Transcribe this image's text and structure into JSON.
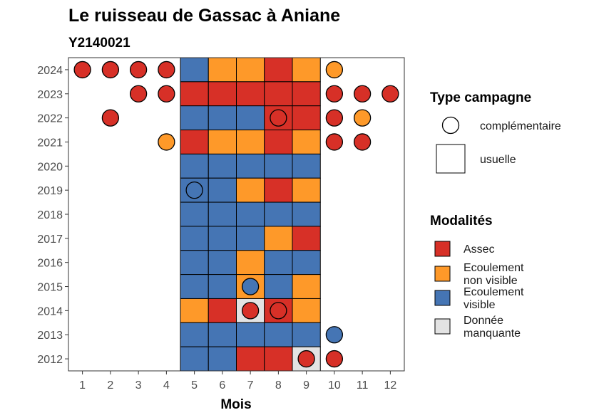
{
  "chart_data": {
    "type": "heatmap",
    "title": "Le ruisseau de Gassac à Aniane",
    "subtitle": "Y2140021",
    "xlabel": "Mois",
    "ylabel": "",
    "x_ticks": [
      "1",
      "2",
      "3",
      "4",
      "5",
      "6",
      "7",
      "8",
      "9",
      "10",
      "11",
      "12"
    ],
    "y_ticks": [
      "2024",
      "2023",
      "2022",
      "2021",
      "2020",
      "2019",
      "2018",
      "2017",
      "2016",
      "2015",
      "2014",
      "2013",
      "2012"
    ],
    "xlim": [
      0.5,
      12.5
    ],
    "ylim": [
      2011.5,
      2024.5
    ],
    "grid": false,
    "legend_position": "right",
    "colors": {
      "Assec": "#d73027",
      "Ecoulement non visible": "#fe9929",
      "Ecoulement visible": "#4575b4",
      "Donnée manquante": "#e3e3e3"
    },
    "legend_campaign": {
      "title": "Type campagne",
      "items": [
        {
          "label": "complémentaire",
          "shape": "circle"
        },
        {
          "label": "usuelle",
          "shape": "square"
        }
      ]
    },
    "legend_modalities": {
      "title": "Modalités",
      "items": [
        {
          "key": "Assec",
          "lines": [
            "Assec"
          ]
        },
        {
          "key": "Ecoulement non visible",
          "lines": [
            "Ecoulement",
            "non visible"
          ]
        },
        {
          "key": "Ecoulement visible",
          "lines": [
            "Ecoulement",
            "visible"
          ]
        },
        {
          "key": "Donnée manquante",
          "lines": [
            "Donnée",
            "manquante"
          ]
        }
      ]
    },
    "usuelle": [
      {
        "year": 2024,
        "month": 5,
        "value": "Ecoulement visible"
      },
      {
        "year": 2024,
        "month": 6,
        "value": "Ecoulement non visible"
      },
      {
        "year": 2024,
        "month": 7,
        "value": "Ecoulement non visible"
      },
      {
        "year": 2024,
        "month": 8,
        "value": "Assec"
      },
      {
        "year": 2024,
        "month": 9,
        "value": "Ecoulement non visible"
      },
      {
        "year": 2023,
        "month": 5,
        "value": "Assec"
      },
      {
        "year": 2023,
        "month": 6,
        "value": "Assec"
      },
      {
        "year": 2023,
        "month": 7,
        "value": "Assec"
      },
      {
        "year": 2023,
        "month": 8,
        "value": "Assec"
      },
      {
        "year": 2023,
        "month": 9,
        "value": "Assec"
      },
      {
        "year": 2022,
        "month": 5,
        "value": "Ecoulement visible"
      },
      {
        "year": 2022,
        "month": 6,
        "value": "Ecoulement visible"
      },
      {
        "year": 2022,
        "month": 7,
        "value": "Ecoulement visible"
      },
      {
        "year": 2022,
        "month": 8,
        "value": "Assec"
      },
      {
        "year": 2022,
        "month": 9,
        "value": "Assec"
      },
      {
        "year": 2021,
        "month": 5,
        "value": "Assec"
      },
      {
        "year": 2021,
        "month": 6,
        "value": "Ecoulement non visible"
      },
      {
        "year": 2021,
        "month": 7,
        "value": "Ecoulement non visible"
      },
      {
        "year": 2021,
        "month": 8,
        "value": "Assec"
      },
      {
        "year": 2021,
        "month": 9,
        "value": "Ecoulement non visible"
      },
      {
        "year": 2020,
        "month": 5,
        "value": "Ecoulement visible"
      },
      {
        "year": 2020,
        "month": 6,
        "value": "Ecoulement visible"
      },
      {
        "year": 2020,
        "month": 7,
        "value": "Ecoulement visible"
      },
      {
        "year": 2020,
        "month": 8,
        "value": "Ecoulement visible"
      },
      {
        "year": 2020,
        "month": 9,
        "value": "Ecoulement visible"
      },
      {
        "year": 2019,
        "month": 5,
        "value": "Ecoulement visible"
      },
      {
        "year": 2019,
        "month": 6,
        "value": "Ecoulement visible"
      },
      {
        "year": 2019,
        "month": 7,
        "value": "Ecoulement non visible"
      },
      {
        "year": 2019,
        "month": 8,
        "value": "Assec"
      },
      {
        "year": 2019,
        "month": 9,
        "value": "Ecoulement non visible"
      },
      {
        "year": 2018,
        "month": 5,
        "value": "Ecoulement visible"
      },
      {
        "year": 2018,
        "month": 6,
        "value": "Ecoulement visible"
      },
      {
        "year": 2018,
        "month": 7,
        "value": "Ecoulement visible"
      },
      {
        "year": 2018,
        "month": 8,
        "value": "Ecoulement visible"
      },
      {
        "year": 2018,
        "month": 9,
        "value": "Ecoulement visible"
      },
      {
        "year": 2017,
        "month": 5,
        "value": "Ecoulement visible"
      },
      {
        "year": 2017,
        "month": 6,
        "value": "Ecoulement visible"
      },
      {
        "year": 2017,
        "month": 7,
        "value": "Ecoulement visible"
      },
      {
        "year": 2017,
        "month": 8,
        "value": "Ecoulement non visible"
      },
      {
        "year": 2017,
        "month": 9,
        "value": "Assec"
      },
      {
        "year": 2016,
        "month": 5,
        "value": "Ecoulement visible"
      },
      {
        "year": 2016,
        "month": 6,
        "value": "Ecoulement visible"
      },
      {
        "year": 2016,
        "month": 7,
        "value": "Ecoulement non visible"
      },
      {
        "year": 2016,
        "month": 8,
        "value": "Ecoulement visible"
      },
      {
        "year": 2016,
        "month": 9,
        "value": "Ecoulement visible"
      },
      {
        "year": 2015,
        "month": 5,
        "value": "Ecoulement visible"
      },
      {
        "year": 2015,
        "month": 6,
        "value": "Ecoulement visible"
      },
      {
        "year": 2015,
        "month": 7,
        "value": "Ecoulement non visible"
      },
      {
        "year": 2015,
        "month": 8,
        "value": "Ecoulement visible"
      },
      {
        "year": 2015,
        "month": 9,
        "value": "Ecoulement non visible"
      },
      {
        "year": 2014,
        "month": 5,
        "value": "Ecoulement non visible"
      },
      {
        "year": 2014,
        "month": 6,
        "value": "Assec"
      },
      {
        "year": 2014,
        "month": 7,
        "value": "Donnée manquante"
      },
      {
        "year": 2014,
        "month": 8,
        "value": "Assec"
      },
      {
        "year": 2014,
        "month": 9,
        "value": "Ecoulement non visible"
      },
      {
        "year": 2013,
        "month": 5,
        "value": "Ecoulement visible"
      },
      {
        "year": 2013,
        "month": 6,
        "value": "Ecoulement visible"
      },
      {
        "year": 2013,
        "month": 7,
        "value": "Ecoulement visible"
      },
      {
        "year": 2013,
        "month": 8,
        "value": "Ecoulement visible"
      },
      {
        "year": 2013,
        "month": 9,
        "value": "Ecoulement visible"
      },
      {
        "year": 2012,
        "month": 5,
        "value": "Ecoulement visible"
      },
      {
        "year": 2012,
        "month": 6,
        "value": "Ecoulement visible"
      },
      {
        "year": 2012,
        "month": 7,
        "value": "Assec"
      },
      {
        "year": 2012,
        "month": 8,
        "value": "Assec"
      },
      {
        "year": 2012,
        "month": 9,
        "value": "Donnée manquante"
      }
    ],
    "complementaire": [
      {
        "year": 2024,
        "month": 1,
        "value": "Assec"
      },
      {
        "year": 2024,
        "month": 2,
        "value": "Assec"
      },
      {
        "year": 2024,
        "month": 3,
        "value": "Assec"
      },
      {
        "year": 2024,
        "month": 4,
        "value": "Assec"
      },
      {
        "year": 2024,
        "month": 10,
        "value": "Ecoulement non visible"
      },
      {
        "year": 2023,
        "month": 3,
        "value": "Assec"
      },
      {
        "year": 2023,
        "month": 4,
        "value": "Assec"
      },
      {
        "year": 2023,
        "month": 10,
        "value": "Assec"
      },
      {
        "year": 2023,
        "month": 11,
        "value": "Assec"
      },
      {
        "year": 2023,
        "month": 12,
        "value": "Assec"
      },
      {
        "year": 2022,
        "month": 2,
        "value": "Assec"
      },
      {
        "year": 2022,
        "month": 8,
        "value": "Assec"
      },
      {
        "year": 2022,
        "month": 10,
        "value": "Assec"
      },
      {
        "year": 2022,
        "month": 11,
        "value": "Ecoulement non visible"
      },
      {
        "year": 2021,
        "month": 4,
        "value": "Ecoulement non visible"
      },
      {
        "year": 2021,
        "month": 10,
        "value": "Assec"
      },
      {
        "year": 2021,
        "month": 11,
        "value": "Assec"
      },
      {
        "year": 2019,
        "month": 5,
        "value": "Ecoulement visible"
      },
      {
        "year": 2015,
        "month": 7,
        "value": "Ecoulement visible"
      },
      {
        "year": 2014,
        "month": 7,
        "value": "Assec"
      },
      {
        "year": 2014,
        "month": 8,
        "value": "Assec"
      },
      {
        "year": 2013,
        "month": 10,
        "value": "Ecoulement visible"
      },
      {
        "year": 2012,
        "month": 9,
        "value": "Assec"
      },
      {
        "year": 2012,
        "month": 10,
        "value": "Assec"
      }
    ]
  }
}
